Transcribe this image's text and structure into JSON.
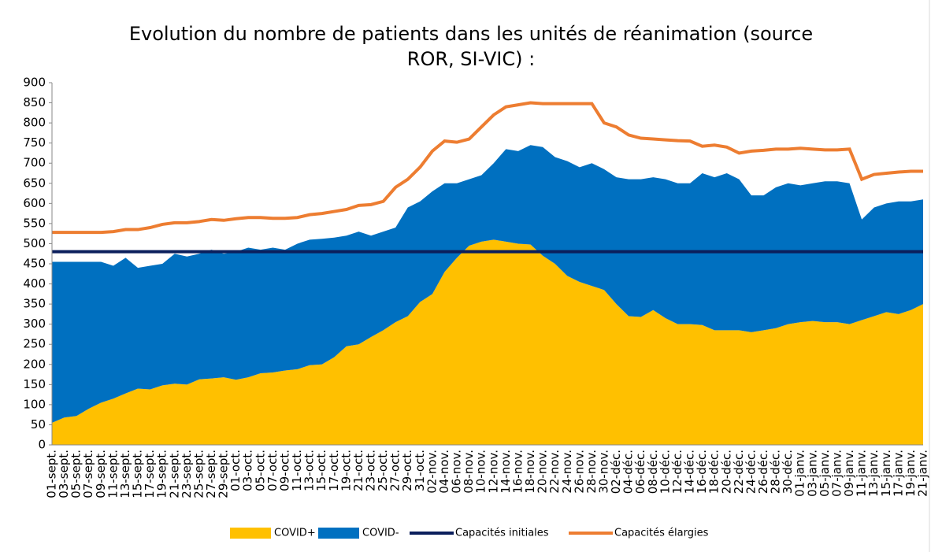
{
  "chart_data": {
    "type": "area",
    "title": [
      "Evolution du nombre de patients dans les unités de réanimation (source",
      "ROR, SI-VIC) :"
    ],
    "categories": [
      "01-sept.",
      "03-sept.",
      "05-sept.",
      "07-sept.",
      "09-sept.",
      "11-sept.",
      "13-sept.",
      "15-sept.",
      "17-sept.",
      "19-sept.",
      "21-sept.",
      "23-sept.",
      "25-sept.",
      "27-sept.",
      "29-sept.",
      "01-oct.",
      "03-oct.",
      "05-oct.",
      "07-oct.",
      "09-oct.",
      "11-oct.",
      "13-oct.",
      "15-oct.",
      "17-oct.",
      "19-oct.",
      "21-oct.",
      "23-oct.",
      "25-oct.",
      "27-oct.",
      "29-oct.",
      "31-oct.",
      "02-nov.",
      "04-nov.",
      "06-nov.",
      "08-nov.",
      "10-nov.",
      "12-nov.",
      "14-nov.",
      "16-nov.",
      "18-nov.",
      "20-nov.",
      "22-nov.",
      "24-nov.",
      "26-nov.",
      "28-nov.",
      "30-nov.",
      "02-déc.",
      "04-déc.",
      "06-déc.",
      "08-déc.",
      "10-déc.",
      "12-déc.",
      "14-déc.",
      "16-déc.",
      "18-déc.",
      "20-déc.",
      "22-déc.",
      "24-déc.",
      "26-déc.",
      "28-déc.",
      "30-déc.",
      "01-janv.",
      "03-janv.",
      "05-janv.",
      "07-janv.",
      "09-janv.",
      "11-janv.",
      "13-janv.",
      "15-janv.",
      "17-janv.",
      "19-janv.",
      "21-janv."
    ],
    "series": [
      {
        "name": "COVID+",
        "color": "#ffc000",
        "style": "area",
        "values": [
          55,
          68,
          72,
          90,
          105,
          115,
          128,
          140,
          138,
          148,
          152,
          150,
          163,
          165,
          168,
          162,
          168,
          178,
          180,
          185,
          188,
          198,
          200,
          218,
          245,
          250,
          268,
          285,
          305,
          320,
          355,
          375,
          430,
          465,
          495,
          505,
          510,
          505,
          500,
          498,
          470,
          450,
          420,
          405,
          395,
          385,
          350,
          320,
          318,
          335,
          315,
          300,
          300,
          298,
          285,
          285,
          285,
          280,
          285,
          290,
          300,
          305,
          308,
          305,
          305,
          300,
          310,
          320,
          330,
          325,
          335,
          350
        ]
      },
      {
        "name": "COVID-",
        "color": "#0070c0",
        "style": "area",
        "values": [
          400,
          387,
          383,
          365,
          350,
          330,
          337,
          300,
          307,
          302,
          323,
          318,
          312,
          320,
          307,
          318,
          322,
          307,
          310,
          300,
          312,
          312,
          312,
          297,
          275,
          280,
          252,
          245,
          235,
          270,
          250,
          255,
          220,
          185,
          165,
          165,
          190,
          230,
          230,
          247,
          270,
          265,
          285,
          285,
          305,
          300,
          315,
          340,
          342,
          330,
          345,
          350,
          350,
          377,
          380,
          390,
          375,
          340,
          335,
          350,
          350,
          340,
          342,
          350,
          350,
          350,
          250,
          270,
          270,
          280,
          270,
          260
        ]
      },
      {
        "name": "Capacités élargies",
        "color": "#ed7d31",
        "style": "line",
        "values": [
          528,
          528,
          528,
          528,
          528,
          530,
          535,
          535,
          540,
          548,
          552,
          552,
          555,
          560,
          558,
          562,
          565,
          565,
          563,
          563,
          565,
          572,
          575,
          580,
          585,
          595,
          597,
          605,
          640,
          660,
          690,
          730,
          755,
          752,
          760,
          790,
          820,
          840,
          845,
          850,
          848,
          848,
          848,
          848,
          848,
          800,
          790,
          770,
          762,
          760,
          758,
          756,
          755,
          742,
          745,
          740,
          725,
          730,
          732,
          735,
          735,
          737,
          735,
          733,
          733,
          735,
          660,
          672,
          675,
          678,
          680,
          680
        ]
      }
    ],
    "reference_lines": [
      {
        "name": "Capacités initiales",
        "value": 480,
        "color": "#0b1f5c"
      }
    ],
    "ylim": [
      0,
      900
    ],
    "yticks": [
      0,
      50,
      100,
      150,
      200,
      250,
      300,
      350,
      400,
      450,
      500,
      550,
      600,
      650,
      700,
      750,
      800,
      850,
      900
    ]
  }
}
